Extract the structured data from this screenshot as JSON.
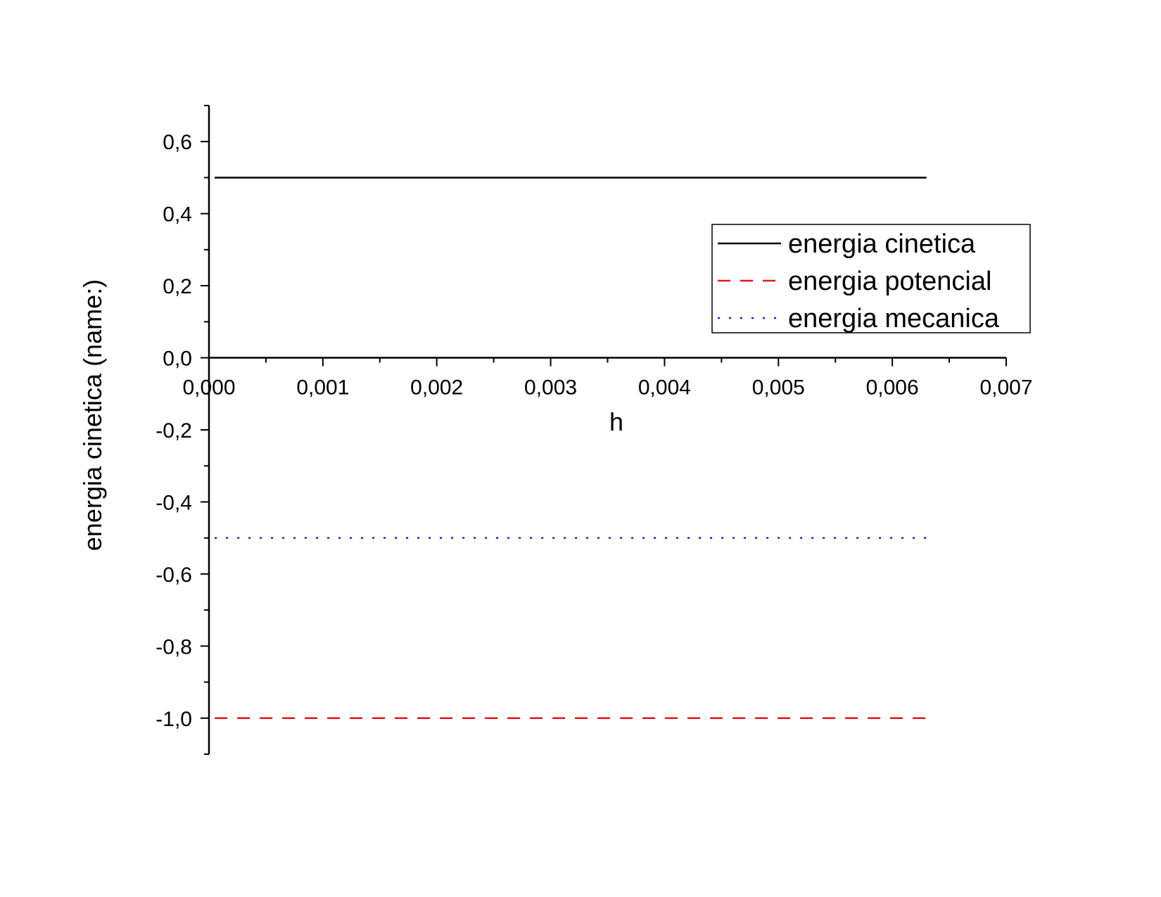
{
  "chart_data": {
    "type": "line",
    "title": "",
    "xlabel": "h",
    "ylabel": "energia cinetica (name:)",
    "xlim": [
      0.0,
      0.007
    ],
    "ylim": [
      -1.1,
      0.7
    ],
    "x_ticks": [
      "0,000",
      "0,001",
      "0,002",
      "0,003",
      "0,004",
      "0,005",
      "0,006",
      "0,007"
    ],
    "x_tick_values": [
      0.0,
      0.001,
      0.002,
      0.003,
      0.004,
      0.005,
      0.006,
      0.007
    ],
    "y_ticks": [
      "0,6",
      "0,4",
      "0,2",
      "0,0",
      "-0,2",
      "-0,4",
      "-0,6",
      "-0,8",
      "-1,0"
    ],
    "y_tick_values": [
      0.6,
      0.4,
      0.2,
      0.0,
      -0.2,
      -0.4,
      -0.6,
      -0.8,
      -1.0
    ],
    "grid": false,
    "legend": "upper-right",
    "series": [
      {
        "name": "energia cinetica",
        "color": "#000000",
        "style": "solid",
        "x": [
          5e-05,
          0.0063
        ],
        "y": [
          0.5,
          0.5
        ]
      },
      {
        "name": "energia potencial",
        "color": "#e8141c",
        "style": "dashed",
        "x": [
          5e-05,
          0.0063
        ],
        "y": [
          -1.0,
          -1.0
        ]
      },
      {
        "name": "energia mecanica",
        "color": "#1c1ce8",
        "style": "dotted",
        "x": [
          5e-05,
          0.0063
        ],
        "y": [
          -0.5,
          -0.5
        ]
      }
    ]
  }
}
